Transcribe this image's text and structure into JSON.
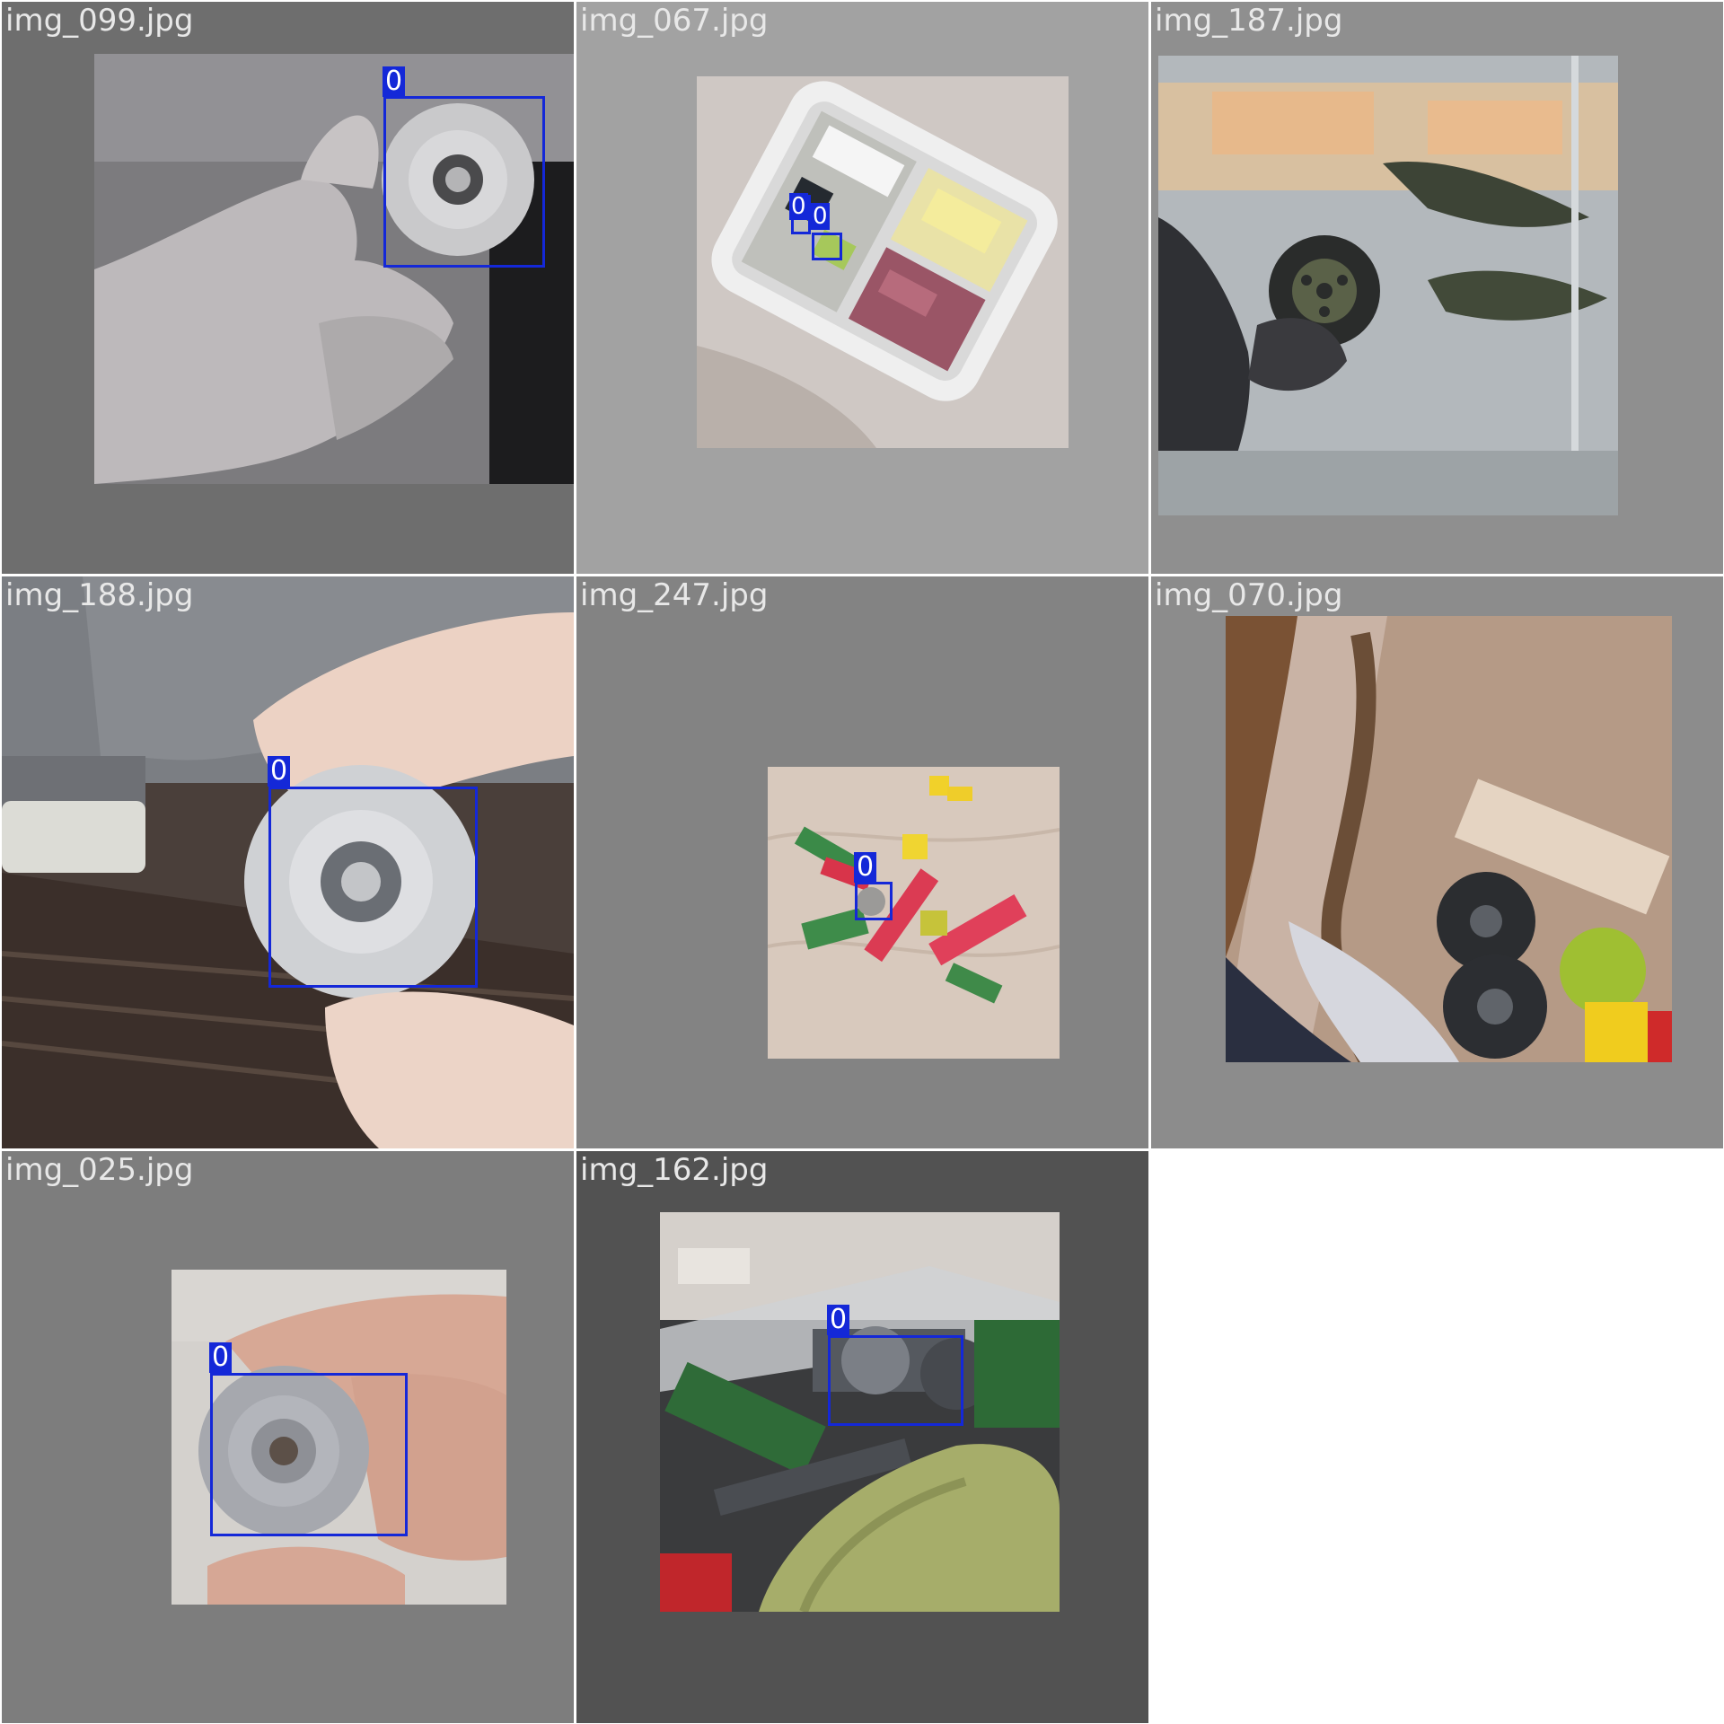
{
  "mosaic": {
    "tiles": [
      {
        "filename": "img_099.jpg",
        "label": "0"
      },
      {
        "filename": "img_067.jpg",
        "labels": [
          "0",
          "0"
        ]
      },
      {
        "filename": "img_187.jpg"
      },
      {
        "filename": "img_188.jpg",
        "label": "0"
      },
      {
        "filename": "img_247.jpg",
        "label": "0"
      },
      {
        "filename": "img_070.jpg"
      },
      {
        "filename": "img_025.jpg",
        "label": "0"
      },
      {
        "filename": "img_162.jpg",
        "label": "0"
      }
    ]
  },
  "colors": {
    "bbox": "#1428d8",
    "label_text": "#ffffff",
    "filename_text": "#e8e8e8"
  }
}
